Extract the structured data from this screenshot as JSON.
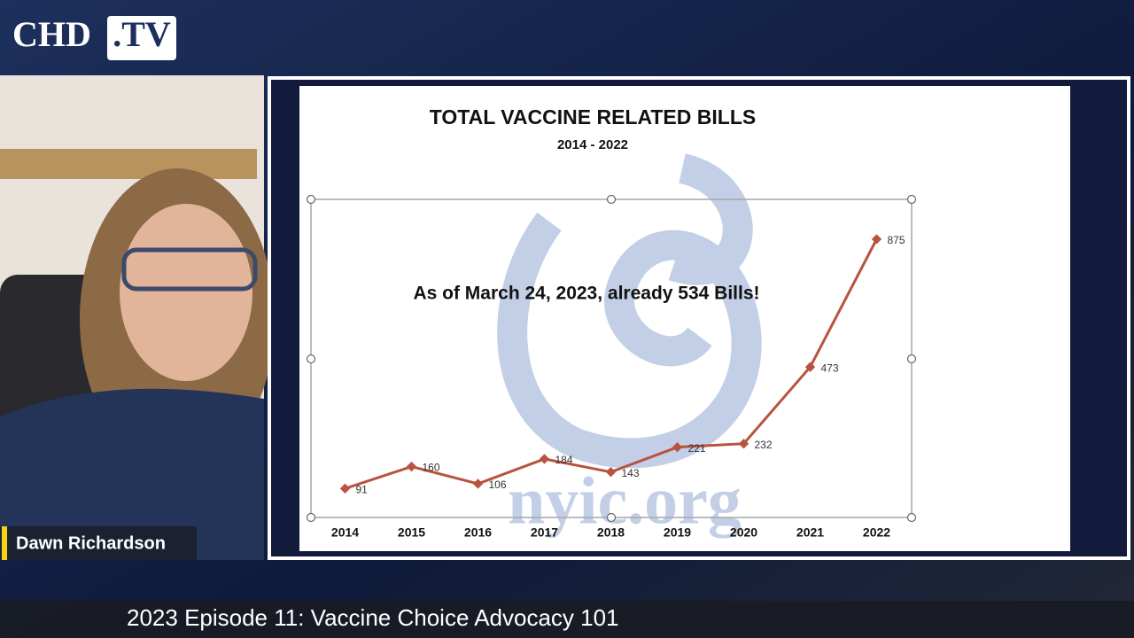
{
  "logo": {
    "text": "CHD",
    "badge": ".TV"
  },
  "speaker_name": "Dawn Richardson",
  "episode_title": "2023 Episode 11: Vaccine Choice Advocacy 101",
  "chart_data": {
    "type": "line",
    "title": "TOTAL VACCINE RELATED BILLS",
    "subtitle": "2014 - 2022",
    "annotation": "As of March 24, 2023, already 534 Bills!",
    "watermark": "nyic.org",
    "categories": [
      "2014",
      "2015",
      "2016",
      "2017",
      "2018",
      "2019",
      "2020",
      "2021",
      "2022"
    ],
    "values": [
      91,
      160,
      106,
      184,
      143,
      221,
      232,
      473,
      875
    ],
    "color": "#b9533f",
    "ylim": [
      0,
      1000
    ]
  }
}
